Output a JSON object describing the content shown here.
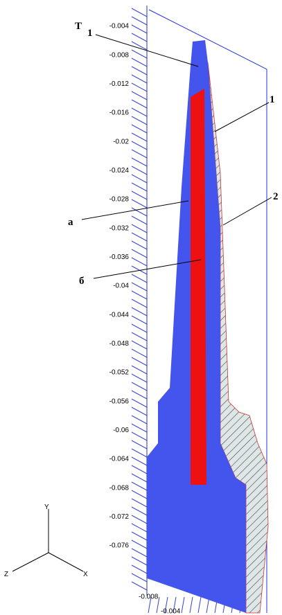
{
  "axis_labels": [
    "-0.004",
    "-0.008",
    "-0.012",
    "-0.016",
    "-0.02",
    "-0.024",
    "-0.028",
    "-0.032",
    "-0.036",
    "-0.04",
    "-0.044",
    "-0.048",
    "-0.052",
    "-0.056",
    "-0.06",
    "-0.064",
    "-0.068",
    "-0.072",
    "-0.076"
  ],
  "bottom_labels": [
    "-0.008",
    "-0.004"
  ],
  "callouts": {
    "t": "T",
    "one_top": "1",
    "one_right": "1",
    "a": "а",
    "b": "б",
    "two": "2"
  },
  "triad": {
    "y": "Y",
    "z": "Z",
    "x": "X"
  }
}
